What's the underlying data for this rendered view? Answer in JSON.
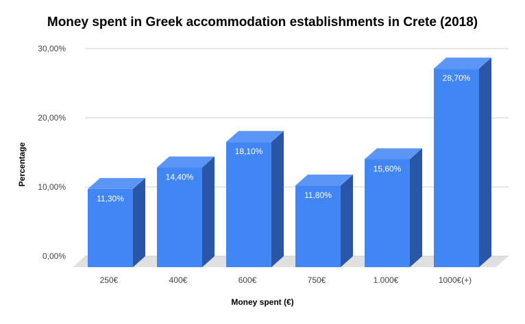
{
  "chart_data": {
    "type": "bar",
    "title": "Money spent in Greek accommodation establishments in Crete (2018)",
    "xlabel": "Money spent (€)",
    "ylabel": "Percentage",
    "categories": [
      "250€",
      "400€",
      "600€",
      "750€",
      "1.000€",
      "1000€(+)"
    ],
    "values": [
      11.3,
      14.4,
      18.1,
      11.8,
      15.6,
      28.7
    ],
    "data_labels": [
      "11,30%",
      "14,40%",
      "18,10%",
      "11,80%",
      "15,60%",
      "28,70%"
    ],
    "ylim": [
      0,
      30
    ],
    "yticks": [
      0,
      10,
      20,
      30
    ],
    "ytick_labels": [
      "0,00%",
      "10,00%",
      "20,00%",
      "30,00%"
    ],
    "grid": true,
    "legend": "none",
    "style": "3d-bar",
    "colors": {
      "bar_front": "#4285f4",
      "bar_top": "#5b95f5",
      "bar_side": "#2a56a8",
      "floor": "#e0e0e0",
      "grid": "#cccccc"
    }
  }
}
